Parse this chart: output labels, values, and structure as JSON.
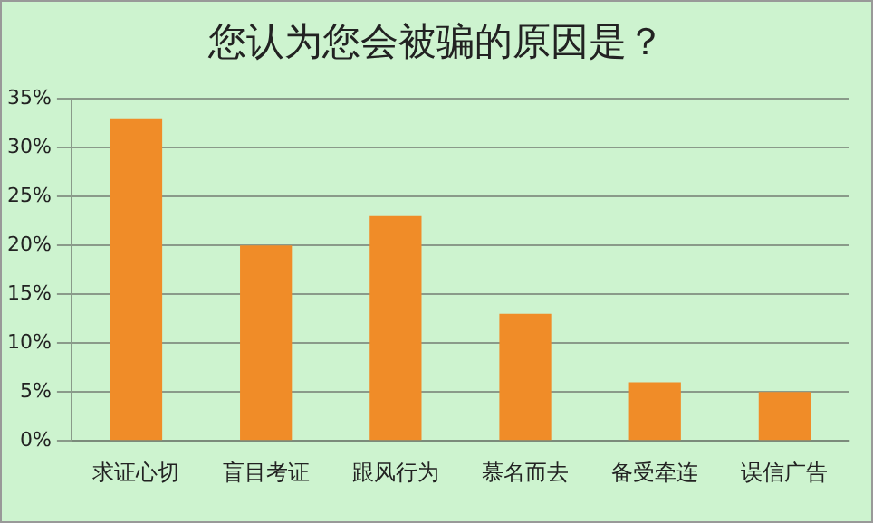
{
  "chart_data": {
    "type": "bar",
    "title": "您认为您会被骗的原因是？",
    "categories": [
      "求证心切",
      "盲目考证",
      "跟风行为",
      "慕名而去",
      "备受牵连",
      "误信广告"
    ],
    "values": [
      33,
      20,
      23,
      13,
      6,
      5
    ],
    "color": "#f08c28",
    "ylim": [
      0,
      35
    ],
    "yticks": [
      {
        "value": 0,
        "label": "0%"
      },
      {
        "value": 5,
        "label": "5%"
      },
      {
        "value": 10,
        "label": "10%"
      },
      {
        "value": 15,
        "label": "15%"
      },
      {
        "value": 20,
        "label": "20%"
      },
      {
        "value": 25,
        "label": "25%"
      },
      {
        "value": 30,
        "label": "30%"
      },
      {
        "value": 35,
        "label": "35%"
      }
    ],
    "grid": "y"
  }
}
